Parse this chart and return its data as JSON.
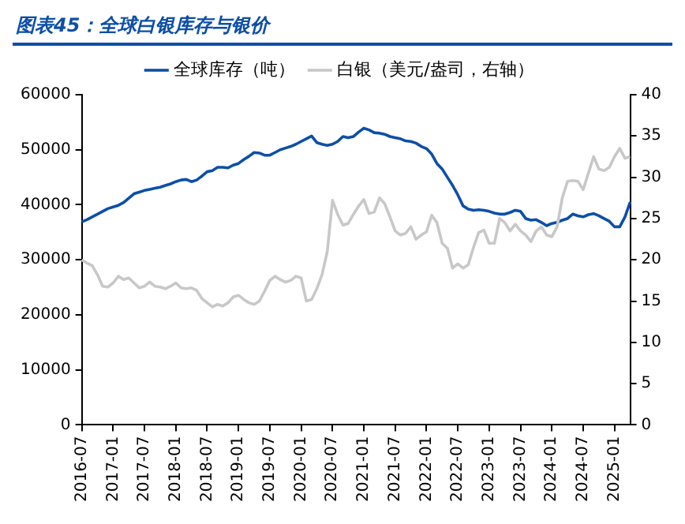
{
  "chart_data": {
    "type": "line",
    "title": "图表45：全球白银库存与银价",
    "categories": [
      "2016-07",
      null,
      null,
      null,
      null,
      null,
      "2017-01",
      null,
      null,
      null,
      null,
      null,
      "2017-07",
      null,
      null,
      null,
      null,
      null,
      "2018-01",
      null,
      null,
      null,
      null,
      null,
      "2018-07",
      null,
      null,
      null,
      null,
      null,
      "2019-01",
      null,
      null,
      null,
      null,
      null,
      "2019-07",
      null,
      null,
      null,
      null,
      null,
      "2020-01",
      null,
      null,
      null,
      null,
      null,
      "2020-07",
      null,
      null,
      null,
      null,
      null,
      "2021-01",
      null,
      null,
      null,
      null,
      null,
      "2021-07",
      null,
      null,
      null,
      null,
      null,
      "2022-01",
      null,
      null,
      null,
      null,
      null,
      "2022-07",
      null,
      null,
      null,
      null,
      null,
      "2023-01",
      null,
      null,
      null,
      null,
      null,
      "2023-07",
      null,
      null,
      null,
      null,
      null,
      "2024-01",
      null,
      null,
      null,
      null,
      null,
      "2024-07",
      null,
      null,
      null,
      null,
      null,
      "2025-01",
      null,
      null,
      null
    ],
    "series": [
      {
        "name": "全球库存（吨）",
        "color": "#0d4fa8",
        "values": [
          36900,
          37300,
          37800,
          38300,
          38800,
          39300,
          39600,
          39900,
          40400,
          41200,
          42000,
          42300,
          42600,
          42800,
          43000,
          43200,
          43500,
          43800,
          44200,
          44500,
          44600,
          44200,
          44500,
          45200,
          46000,
          46200,
          46800,
          46800,
          46700,
          47200,
          47500,
          48200,
          48800,
          49500,
          49400,
          49000,
          49000,
          49500,
          50000,
          50300,
          50600,
          51000,
          51500,
          52000,
          52500,
          51300,
          51000,
          50800,
          51000,
          51500,
          52400,
          52200,
          52400,
          53200,
          53900,
          53600,
          53100,
          53000,
          52800,
          52400,
          52200,
          52000,
          51600,
          51500,
          51200,
          50600,
          50200,
          49200,
          47500,
          46500,
          45000,
          43500,
          41800,
          39800,
          39200,
          39000,
          39100,
          39000,
          38800,
          38500,
          38300,
          38300,
          38600,
          39000,
          38800,
          37500,
          37200,
          37300,
          36800,
          36200,
          36600,
          36800,
          37200,
          37500,
          38300,
          38000,
          37800,
          38200,
          38400,
          38000,
          37500,
          37000,
          36000,
          36000,
          37800,
          40500
        ]
      },
      {
        "name": "白银（美元/盎司，右轴）",
        "color": "#c8c8c8",
        "axis": "y2",
        "values": [
          20,
          19.6,
          19.3,
          18.2,
          16.8,
          16.7,
          17.2,
          18,
          17.6,
          17.8,
          17.2,
          16.6,
          16.8,
          17.3,
          16.8,
          16.7,
          16.5,
          16.8,
          17.2,
          16.6,
          16.5,
          16.6,
          16.3,
          15.3,
          14.8,
          14.3,
          14.6,
          14.4,
          14.8,
          15.5,
          15.7,
          15.2,
          14.8,
          14.6,
          15,
          16.2,
          17.5,
          18,
          17.6,
          17.3,
          17.5,
          18,
          17.8,
          15,
          15.2,
          16.5,
          18.2,
          21,
          27.2,
          25.5,
          24.2,
          24.4,
          25.5,
          26.5,
          27.3,
          25.6,
          25.8,
          27.5,
          26.8,
          25.2,
          23.5,
          23,
          23.2,
          24,
          22.5,
          23,
          23.4,
          25.4,
          24.5,
          22,
          21.4,
          19,
          19.5,
          19,
          19.4,
          21.5,
          23.3,
          23.6,
          22,
          22,
          25,
          24.5,
          23.5,
          24.3,
          23.5,
          23,
          22.2,
          23.5,
          24,
          23,
          22.8,
          24,
          27.5,
          29.5,
          29.6,
          29.5,
          28.5,
          30.5,
          32.5,
          31,
          30.8,
          31.2,
          32.5,
          33.5,
          32.3,
          32.5
        ]
      }
    ],
    "ylim": [
      0,
      60000
    ],
    "yticks": [
      0,
      10000,
      20000,
      30000,
      40000,
      50000,
      60000
    ],
    "y2lim": [
      0,
      40
    ],
    "y2ticks": [
      0,
      5,
      10,
      15,
      20,
      25,
      30,
      35,
      40
    ],
    "legend": "top",
    "grid": false,
    "marker": "none",
    "line_style": "solid"
  }
}
